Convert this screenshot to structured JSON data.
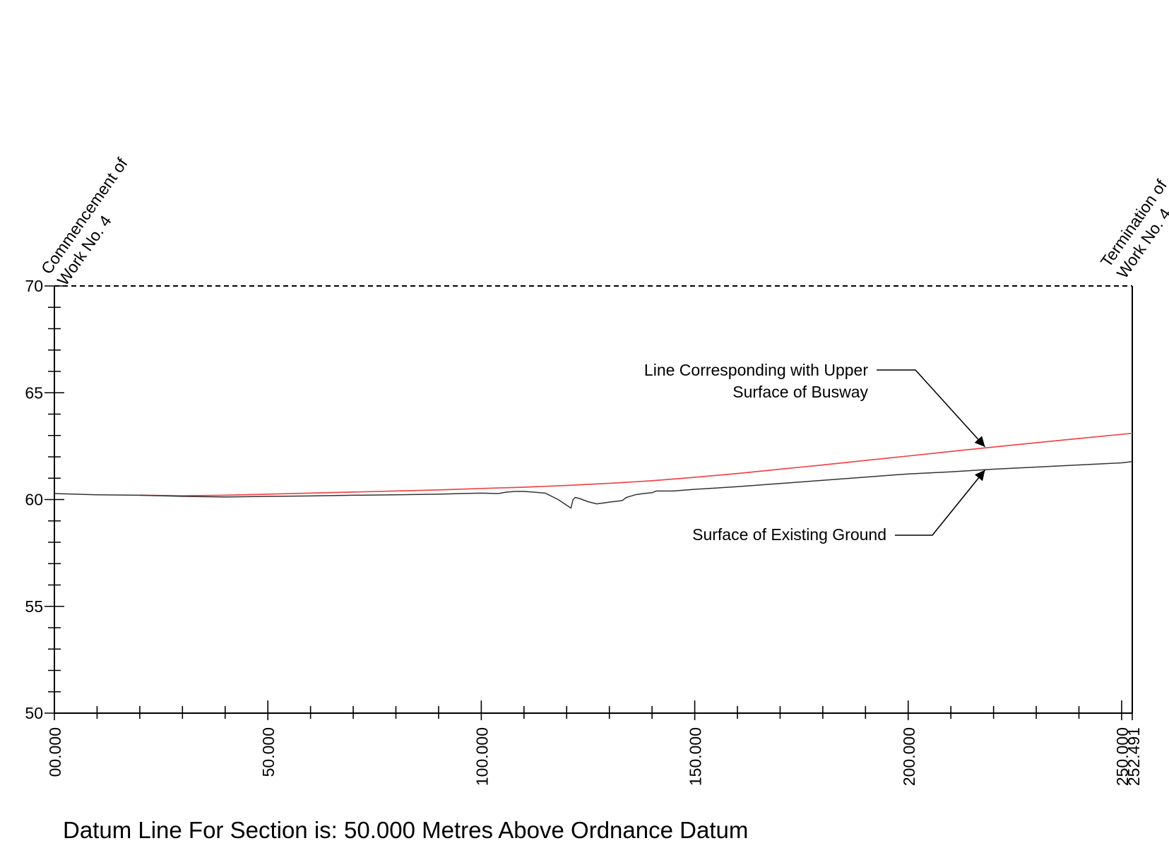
{
  "colors": {
    "busway": "#f0474b",
    "ground": "#333333",
    "axis": "#000000"
  },
  "chart_data": {
    "type": "line",
    "xlabel": "",
    "ylabel": "",
    "xlim": [
      0,
      252.491
    ],
    "ylim": [
      50,
      70
    ],
    "y_ticks": [
      50,
      55,
      60,
      65,
      70
    ],
    "y_minor_step": 1,
    "x_ticks": [
      0,
      50,
      100,
      150,
      200,
      250
    ],
    "x_tick_labels": [
      "00.000",
      "50.000",
      "100.000",
      "150.000",
      "200.000",
      "250.000"
    ],
    "x_minor_step": 10,
    "x_end": 252.491,
    "x_end_label": "252.491",
    "top_dashed_level": 70,
    "series": [
      {
        "name": "Line Corresponding with Upper Surface of Busway",
        "x": [
          20,
          30,
          40,
          50,
          60,
          70,
          80,
          90,
          100,
          110,
          120,
          130,
          140,
          150,
          160,
          170,
          180,
          190,
          200,
          210,
          220,
          230,
          240,
          252.491
        ],
        "y": [
          60.2,
          60.18,
          60.2,
          60.25,
          60.3,
          60.35,
          60.4,
          60.45,
          60.52,
          60.58,
          60.66,
          60.76,
          60.88,
          61.04,
          61.22,
          61.42,
          61.62,
          61.83,
          62.04,
          62.25,
          62.46,
          62.66,
          62.86,
          63.1
        ]
      },
      {
        "name": "Surface of Existing Ground",
        "x": [
          0,
          5,
          10,
          20,
          30,
          40,
          50,
          60,
          70,
          80,
          90,
          95,
          100,
          104,
          106,
          108,
          110,
          112,
          115,
          118,
          121,
          121.5,
          122,
          123,
          125,
          127,
          128,
          130,
          133,
          134,
          136,
          138,
          140,
          141,
          145,
          150,
          160,
          170,
          180,
          190,
          200,
          210,
          220,
          230,
          240,
          250,
          252.491
        ],
        "y": [
          60.28,
          60.25,
          60.22,
          60.2,
          60.15,
          60.12,
          60.15,
          60.17,
          60.2,
          60.22,
          60.25,
          60.28,
          60.3,
          60.28,
          60.35,
          60.38,
          60.38,
          60.35,
          60.3,
          60.0,
          59.6,
          60.0,
          60.1,
          60.05,
          59.9,
          59.8,
          59.82,
          59.88,
          59.95,
          60.1,
          60.22,
          60.28,
          60.32,
          60.4,
          60.4,
          60.48,
          60.6,
          60.75,
          60.9,
          61.05,
          61.2,
          61.3,
          61.42,
          61.52,
          61.62,
          61.72,
          61.78
        ]
      }
    ],
    "annotations": {
      "busway_label_line1": "Line Corresponding with Upper",
      "busway_label_line2": "Surface of Busway",
      "ground_label": "Surface of Existing Ground",
      "busway_arrow_target": [
        218,
        62.4
      ],
      "ground_arrow_target": [
        218,
        61.45
      ]
    },
    "commencement_line1": "Commencement of",
    "commencement_line2": "Work No. 4",
    "termination_line1": "Termination of",
    "termination_line2": "Work No. 4",
    "footer": "Datum Line For Section is: 50.000 Metres Above Ordnance Datum"
  }
}
